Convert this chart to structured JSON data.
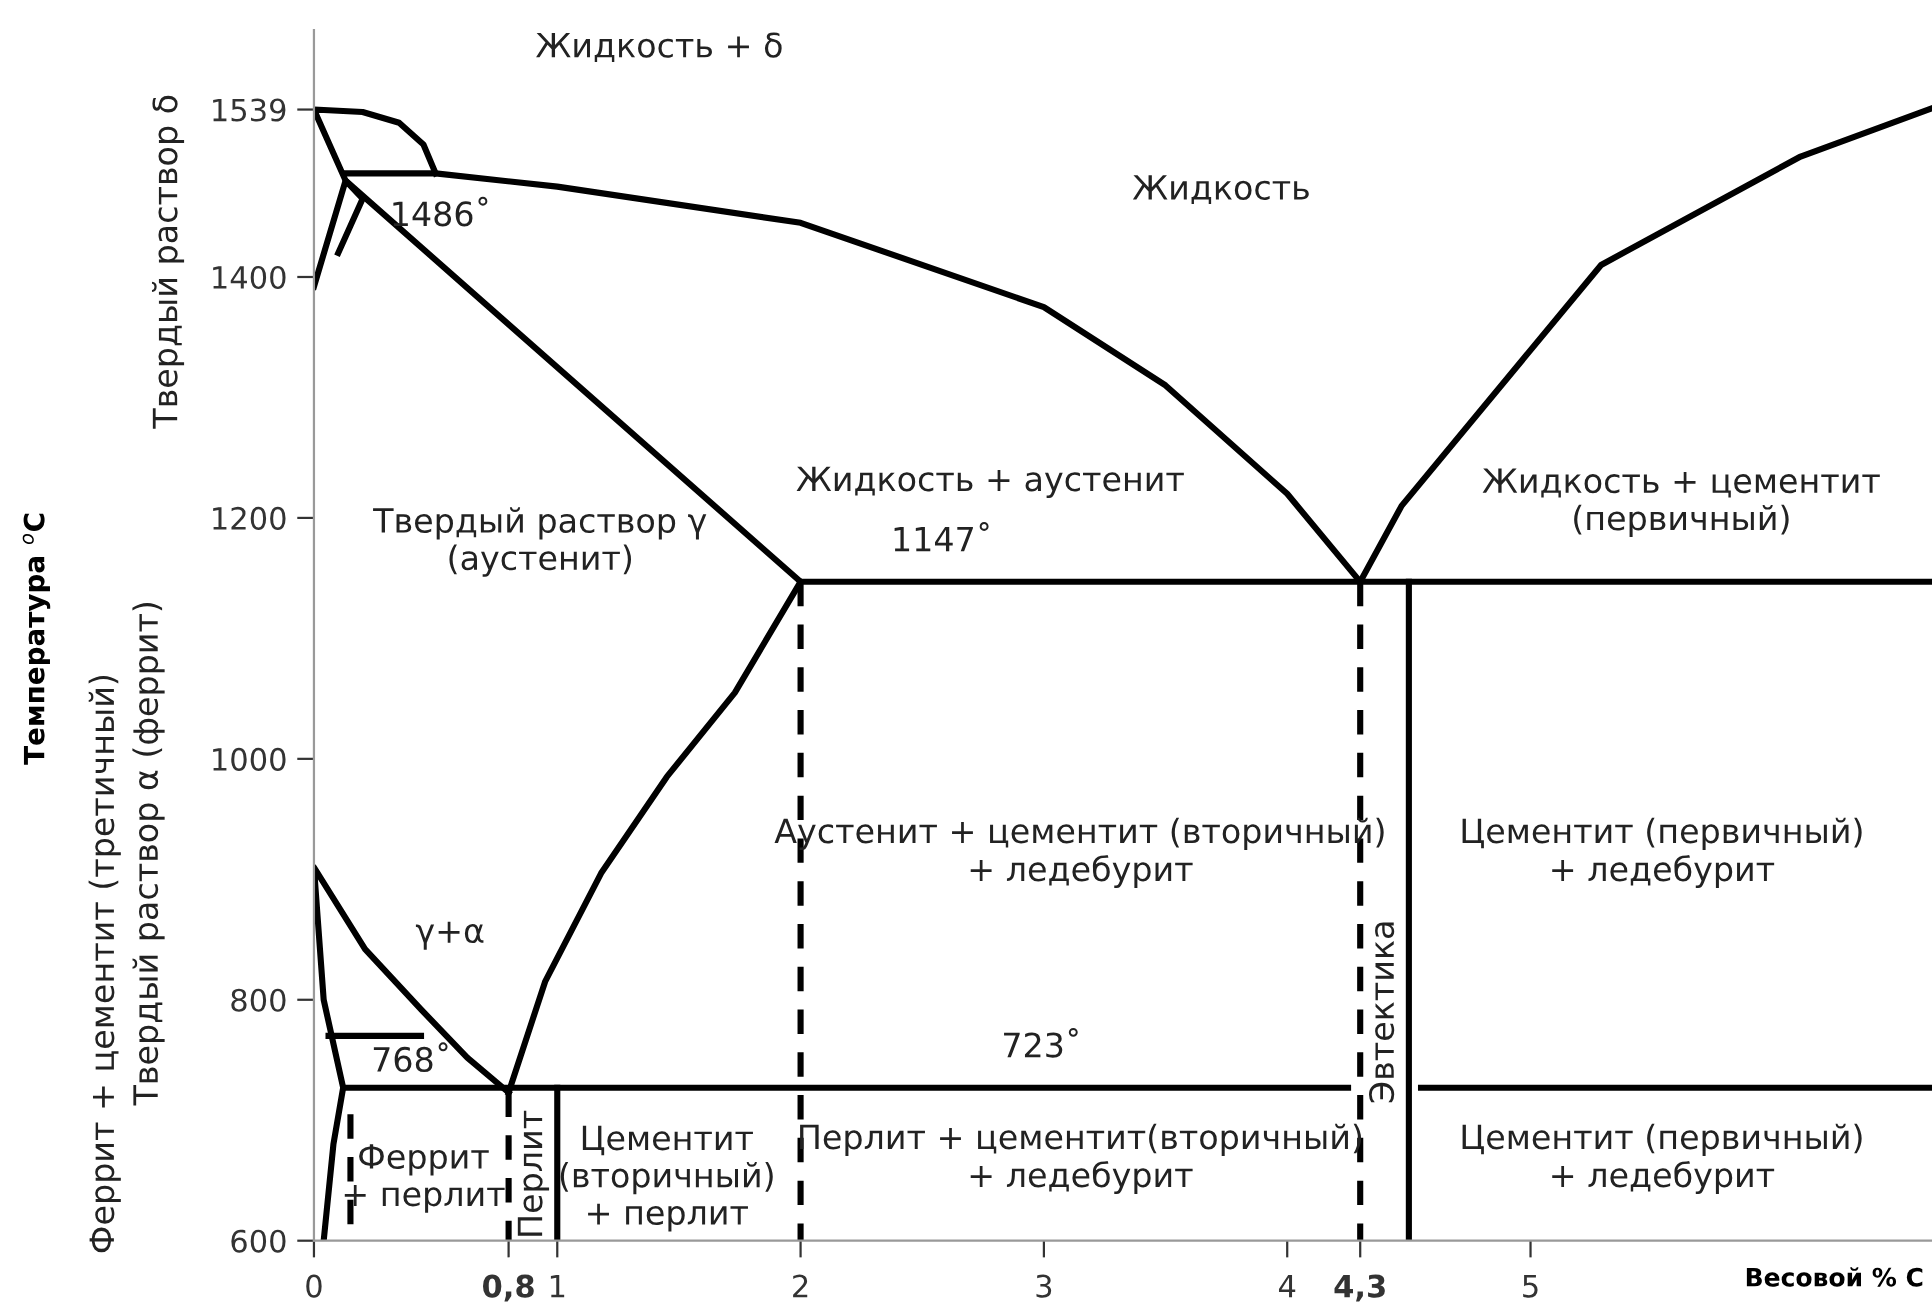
{
  "chart_data": {
    "type": "line",
    "xlabel": "Весовой % C",
    "xlim": [
      0,
      6.65
    ],
    "ylim": [
      600,
      1605
    ],
    "xticks": [
      0,
      {
        "value": 0.8,
        "label": "0,8"
      },
      1,
      2,
      3,
      4,
      {
        "value": 4.3,
        "label": "4,3"
      },
      5
    ],
    "yticks": [
      600,
      800,
      1000,
      1200,
      1400,
      1539
    ],
    "grid": false,
    "marker": "none",
    "series": [
      {
        "color": "#000000",
        "line_style": "solid",
        "x": [
          0.5,
          0.45,
          0.35,
          0.2,
          0,
          0.13,
          2
        ],
        "values": [
          1486,
          1510,
          1528,
          1537,
          1539,
          1480,
          1147
        ]
      },
      {
        "color": "#000000",
        "line_style": "solid",
        "x": [
          0.13,
          0.5,
          1,
          2,
          3,
          3.5,
          4,
          4.3
        ],
        "values": [
          1486,
          1486,
          1475,
          1445,
          1375,
          1310,
          1220,
          1147
        ]
      },
      {
        "color": "#000000",
        "line_style": "solid",
        "x": [
          4.3,
          4.47,
          5.29,
          6.11,
          6.65
        ],
        "values": [
          1147,
          1210,
          1410,
          1500,
          1540
        ]
      },
      {
        "color": "#000000",
        "line_style": "solid",
        "x": [
          0,
          0.13,
          0.2,
          0.1
        ],
        "values": [
          1392,
          1480,
          1465,
          1420
        ]
      },
      {
        "color": "#000000",
        "line_style": "solid",
        "x": [
          0.8,
          0.95,
          1.18,
          1.45,
          1.73,
          2
        ],
        "values": [
          723,
          815,
          905,
          985,
          1055,
          1147
        ]
      },
      {
        "color": "#000000",
        "line_style": "solid",
        "x": [
          0.8,
          0.63,
          0.44,
          0.21,
          0,
          0.04,
          0.12,
          0.08,
          0.04
        ],
        "values": [
          723,
          752,
          792,
          842,
          910,
          800,
          727,
          680,
          600
        ]
      },
      {
        "color": "#000000",
        "line_style": "solid",
        "x": [
          0.06,
          0.44
        ],
        "values": [
          770,
          770
        ]
      },
      {
        "color": "#000000",
        "line_style": "solid",
        "x": [
          0.12,
          4.25
        ],
        "values": [
          727,
          727
        ]
      },
      {
        "color": "#000000",
        "line_style": "solid",
        "x": [
          4.55,
          6.65
        ],
        "values": [
          727,
          727
        ]
      },
      {
        "color": "#000000",
        "line_style": "solid",
        "x": [
          2,
          6.65
        ],
        "values": [
          1147,
          1147
        ]
      },
      {
        "color": "#000000",
        "line_style": "dashed",
        "x": [
          0.15,
          0.15
        ],
        "values": [
          705,
          600
        ]
      },
      {
        "color": "#000000",
        "line_style": "dashed",
        "x": [
          0.8,
          0.8
        ],
        "values": [
          723,
          600
        ]
      },
      {
        "color": "#000000",
        "line_style": "dashed",
        "x": [
          2,
          2
        ],
        "values": [
          1147,
          600
        ]
      },
      {
        "color": "#000000",
        "line_style": "dashed",
        "x": [
          4.3,
          4.3
        ],
        "values": [
          1147,
          600
        ]
      },
      {
        "color": "#000000",
        "line_style": "solid",
        "x": [
          1,
          1
        ],
        "values": [
          727,
          600
        ]
      },
      {
        "color": "#000000",
        "line_style": "solid",
        "x": [
          4.5,
          4.5
        ],
        "values": [
          1147,
          600
        ]
      }
    ],
    "annotations": [
      "Жидкость + δ",
      "Жидкость",
      "1486˚",
      "Жидкость + аустенит",
      "Жидкость + цементит\n(первичный)",
      "1147˚",
      "Твердый раствор γ\n(аустенит)",
      "Аустенит + цементит (вторичный)\n+ ледебурит",
      "Цементит (первичный)\n+ ледебурит",
      "γ+α",
      "768˚",
      "723˚",
      "Феррит\n+ перлит",
      "Перлит",
      "Цементит\n(вторичный)\n+ перлит",
      "Перлит + цементит(вторичный)\n+ ледебурит",
      "Эвтектика",
      "Цементит (первичный)\n+ ледебурит",
      "Твердый раствор δ",
      "Твердый раствор α (феррит)",
      "Феррит + цементит (третичный)",
      "Температура $^{o}$C"
    ]
  }
}
